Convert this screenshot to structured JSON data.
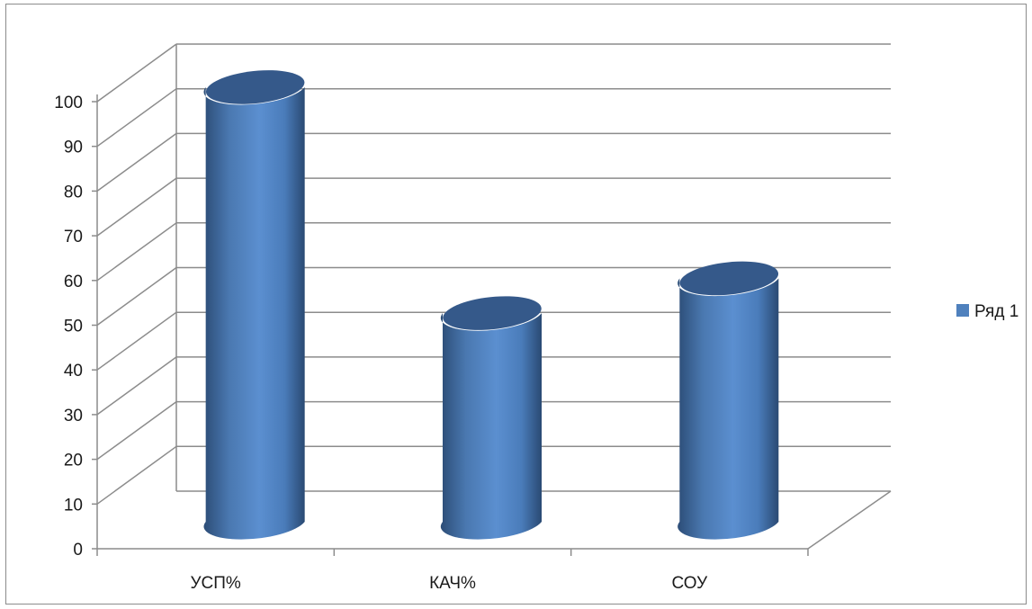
{
  "chart_data": {
    "type": "bar",
    "style": "3d-cylinder",
    "categories": [
      "УСП%",
      "КАЧ%",
      "СОУ"
    ],
    "series": [
      {
        "name": "Ряд 1",
        "values": [
          100,
          48,
          56
        ],
        "color": "#4f81bd"
      }
    ],
    "ylim": [
      0,
      100
    ],
    "yticks": [
      "0",
      "10",
      "20",
      "30",
      "40",
      "50",
      "60",
      "70",
      "80",
      "90",
      "100"
    ],
    "grid": true,
    "legend_position": "right"
  }
}
